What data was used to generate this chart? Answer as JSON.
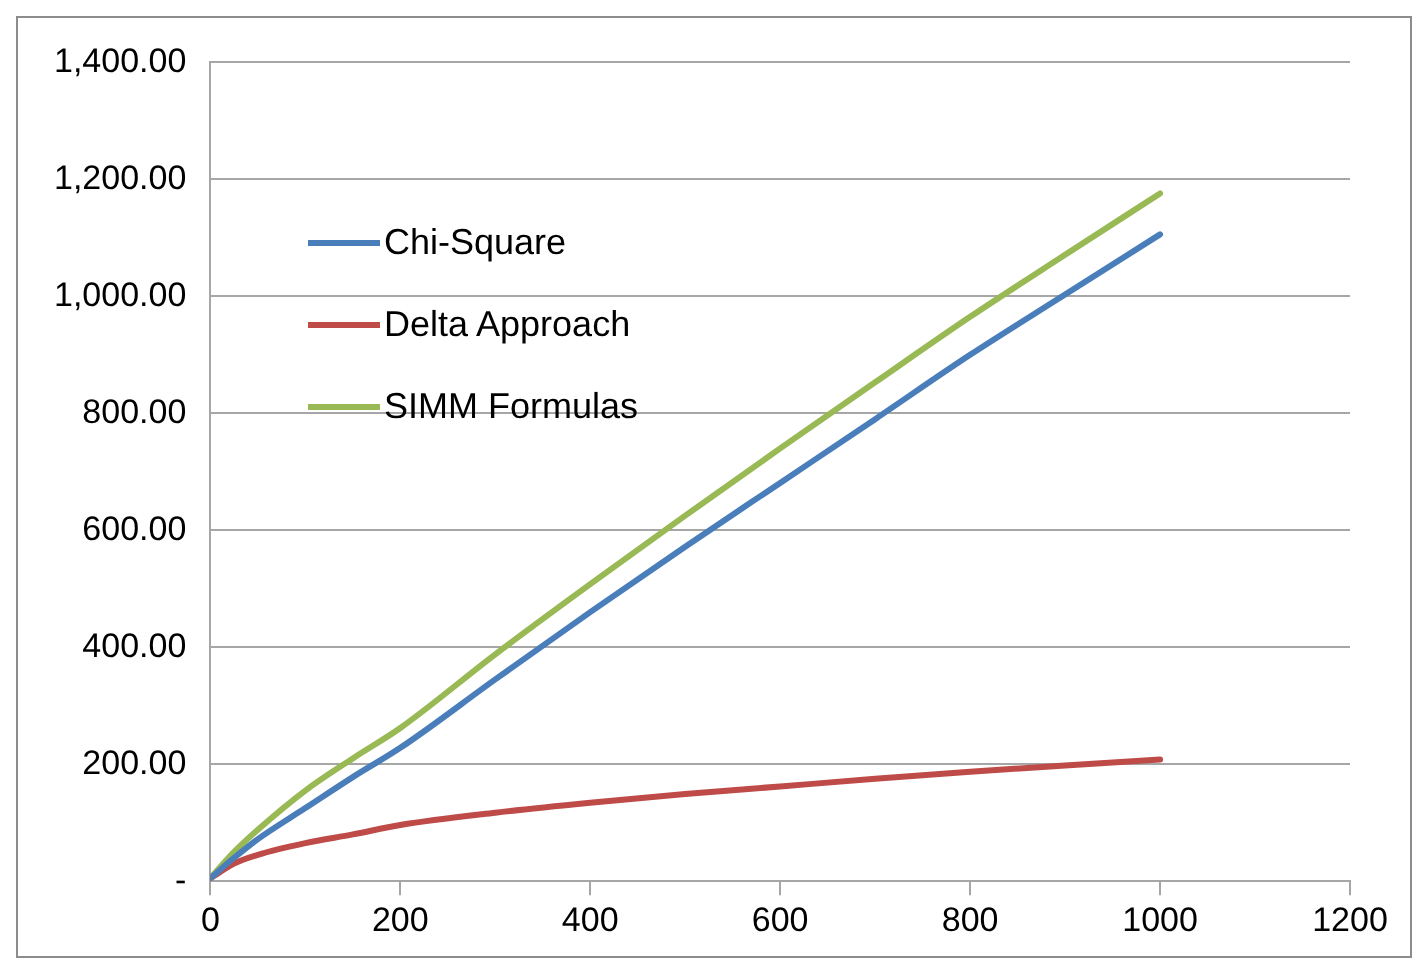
{
  "chart_data": {
    "type": "line",
    "x": [
      0,
      25,
      50,
      100,
      150,
      200,
      300,
      400,
      500,
      600,
      700,
      800,
      900,
      1000
    ],
    "series": [
      {
        "name": "Chi-Square",
        "color": "#4a7ebb",
        "values": [
          5,
          40,
          72,
          125,
          178,
          228,
          345,
          460,
          572,
          681,
          790,
          900,
          1003,
          1106
        ]
      },
      {
        "name": "Delta Approach",
        "color": "#be4b48",
        "values": [
          5,
          30,
          45,
          65,
          80,
          96,
          117,
          134,
          149,
          162,
          175,
          187,
          198,
          208
        ]
      },
      {
        "name": "SIMM Formulas",
        "color": "#98b954",
        "values": [
          5,
          50,
          88,
          155,
          210,
          262,
          388,
          508,
          625,
          740,
          853,
          965,
          1071,
          1176
        ]
      }
    ],
    "xlim": [
      0,
      1200
    ],
    "xticks": [
      0,
      200,
      400,
      600,
      800,
      1000,
      1200
    ],
    "ylim": [
      0,
      1400
    ],
    "yticks": [
      {
        "value": 0,
        "label": "-"
      },
      {
        "value": 200,
        "label": "200.00"
      },
      {
        "value": 400,
        "label": "400.00"
      },
      {
        "value": 600,
        "label": "600.00"
      },
      {
        "value": 800,
        "label": "800.00"
      },
      {
        "value": 1000,
        "label": "1,000.00"
      },
      {
        "value": 1200,
        "label": "1,200.00"
      },
      {
        "value": 1400,
        "label": "1,400.00"
      }
    ],
    "grid": "y",
    "legend": "top left",
    "marker": "none",
    "line_style": "solid"
  }
}
